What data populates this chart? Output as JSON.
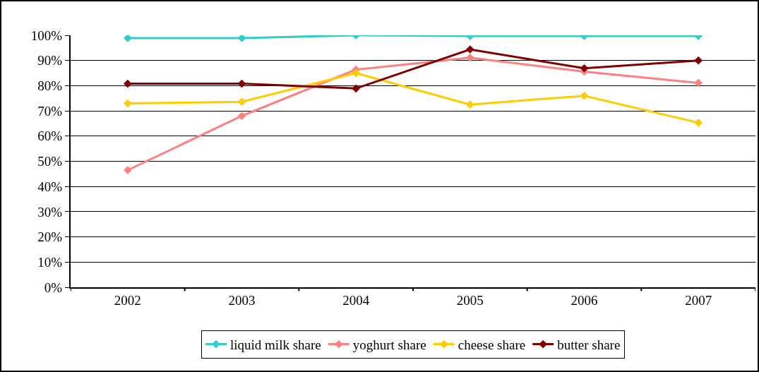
{
  "chart_data": {
    "type": "line",
    "categories": [
      "2002",
      "2003",
      "2004",
      "2005",
      "2006",
      "2007"
    ],
    "series": [
      {
        "name": "liquid milk share",
        "color": "#33cccc",
        "values": [
          98.9,
          98.9,
          100,
          99.7,
          99.7,
          99.7
        ]
      },
      {
        "name": "yoghurt share",
        "color": "#ff8080",
        "values": [
          46.5,
          68,
          86.4,
          91.1,
          85.6,
          81.1
        ]
      },
      {
        "name": "cheese share",
        "color": "#ffcc00",
        "values": [
          73,
          73.6,
          85,
          72.5,
          76,
          65.3
        ]
      },
      {
        "name": "butter share",
        "color": "#800000",
        "values": [
          80.8,
          80.8,
          78.9,
          94.4,
          86.9,
          90
        ]
      }
    ],
    "ylim": [
      0,
      100
    ],
    "yticks": [
      {
        "value": 0,
        "label": "0%"
      },
      {
        "value": 10,
        "label": "10%"
      },
      {
        "value": 20,
        "label": "20%"
      },
      {
        "value": 30,
        "label": "30%"
      },
      {
        "value": 40,
        "label": "40%"
      },
      {
        "value": 50,
        "label": "50%"
      },
      {
        "value": 60,
        "label": "60%"
      },
      {
        "value": 70,
        "label": "70%"
      },
      {
        "value": 80,
        "label": "80%"
      },
      {
        "value": 90,
        "label": "90%"
      },
      {
        "value": 100,
        "label": "100%"
      }
    ],
    "grid": "y",
    "legend": "bottom",
    "marker": "diamond",
    "line_style": "solid"
  }
}
